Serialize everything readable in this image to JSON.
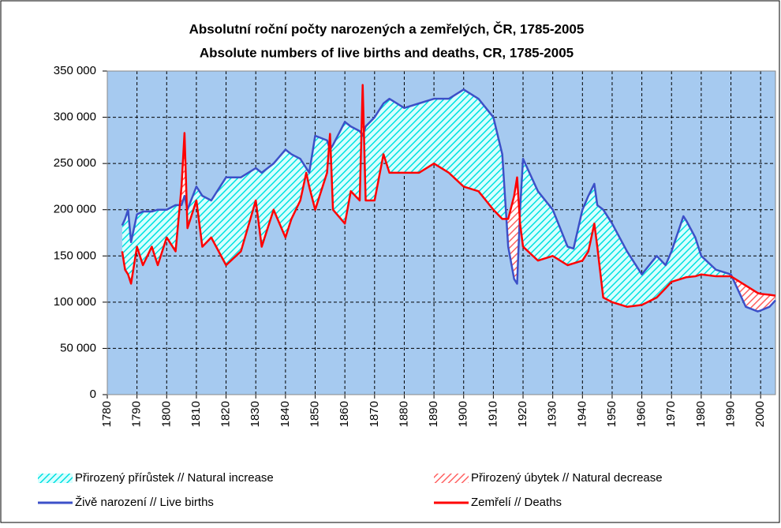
{
  "chart_data": {
    "type": "line",
    "title": "Absolutní roční počty narozených a zemřelých, ČR, 1785-2005",
    "subtitle": "Absolute numbers of live births and deaths, CR, 1785-2005",
    "x": [
      1785,
      1786,
      1787,
      1788,
      1790,
      1792,
      1795,
      1797,
      1800,
      1803,
      1805,
      1806,
      1807,
      1810,
      1812,
      1815,
      1820,
      1825,
      1830,
      1832,
      1836,
      1840,
      1842,
      1845,
      1847,
      1848,
      1850,
      1854,
      1855,
      1856,
      1860,
      1862,
      1865,
      1866,
      1867,
      1870,
      1873,
      1875,
      1880,
      1885,
      1890,
      1895,
      1900,
      1905,
      1910,
      1913,
      1915,
      1917,
      1918,
      1919,
      1920,
      1925,
      1930,
      1935,
      1937,
      1940,
      1942,
      1944,
      1945,
      1947,
      1950,
      1955,
      1960,
      1965,
      1968,
      1970,
      1974,
      1975,
      1978,
      1980,
      1985,
      1990,
      1995,
      1999,
      2000,
      2003,
      2005
    ],
    "series": [
      {
        "name": "Živě narození // Live births",
        "color": "#3c50c8",
        "values": [
          183000,
          190000,
          200000,
          165000,
          195000,
          198000,
          198000,
          200000,
          200000,
          205000,
          205000,
          215000,
          200000,
          225000,
          215000,
          210000,
          235000,
          235000,
          245000,
          240000,
          250000,
          265000,
          260000,
          255000,
          245000,
          240000,
          280000,
          275000,
          265000,
          270000,
          295000,
          290000,
          285000,
          280000,
          290000,
          300000,
          315000,
          320000,
          310000,
          315000,
          320000,
          320000,
          330000,
          320000,
          300000,
          260000,
          160000,
          125000,
          120000,
          200000,
          255000,
          220000,
          200000,
          160000,
          158000,
          200000,
          215000,
          228000,
          205000,
          200000,
          185000,
          155000,
          130000,
          150000,
          140000,
          155000,
          193000,
          188000,
          170000,
          150000,
          135000,
          130000,
          95000,
          90000,
          91000,
          95000,
          102000
        ]
      },
      {
        "name": "Zemřelí // Deaths",
        "color": "#ff0000",
        "values": [
          155000,
          135000,
          130000,
          120000,
          160000,
          140000,
          160000,
          140000,
          170000,
          155000,
          225000,
          283000,
          180000,
          210000,
          160000,
          170000,
          140000,
          155000,
          210000,
          160000,
          200000,
          170000,
          190000,
          210000,
          240000,
          225000,
          200000,
          240000,
          282000,
          200000,
          185000,
          220000,
          210000,
          335000,
          210000,
          210000,
          260000,
          240000,
          240000,
          240000,
          250000,
          240000,
          225000,
          220000,
          200000,
          190000,
          190000,
          215000,
          235000,
          185000,
          160000,
          145000,
          150000,
          140000,
          142000,
          145000,
          155000,
          185000,
          160000,
          105000,
          100000,
          95000,
          97000,
          105000,
          115000,
          122000,
          126000,
          127000,
          128000,
          130000,
          128000,
          128000,
          118000,
          110000,
          109000,
          108000,
          107000
        ]
      }
    ],
    "fills": [
      {
        "name": "Přirozený přírůstek // Natural increase",
        "color": "#00e0e0"
      },
      {
        "name": "Přirozený úbytek // Natural decrease",
        "color": "#ff6060"
      }
    ],
    "xlim": [
      1780,
      2005
    ],
    "xticks": [
      1780,
      1790,
      1800,
      1810,
      1820,
      1830,
      1840,
      1850,
      1860,
      1870,
      1880,
      1890,
      1900,
      1910,
      1920,
      1930,
      1940,
      1950,
      1960,
      1970,
      1980,
      1990,
      2000
    ],
    "ylim": [
      0,
      350000
    ],
    "yticks": [
      0,
      {
        "value": 50000,
        "label": "50 000"
      },
      {
        "value": 100000,
        "label": "100 000"
      },
      {
        "value": 150000,
        "label": "150 000"
      },
      {
        "value": 200000,
        "label": "200 000"
      },
      {
        "value": 250000,
        "label": "250 000"
      },
      {
        "value": 300000,
        "label": "300 000"
      },
      {
        "value": 350000,
        "label": "350 000"
      }
    ],
    "grid": true,
    "plot_background": "#a6caf0",
    "legend": "bottom"
  }
}
